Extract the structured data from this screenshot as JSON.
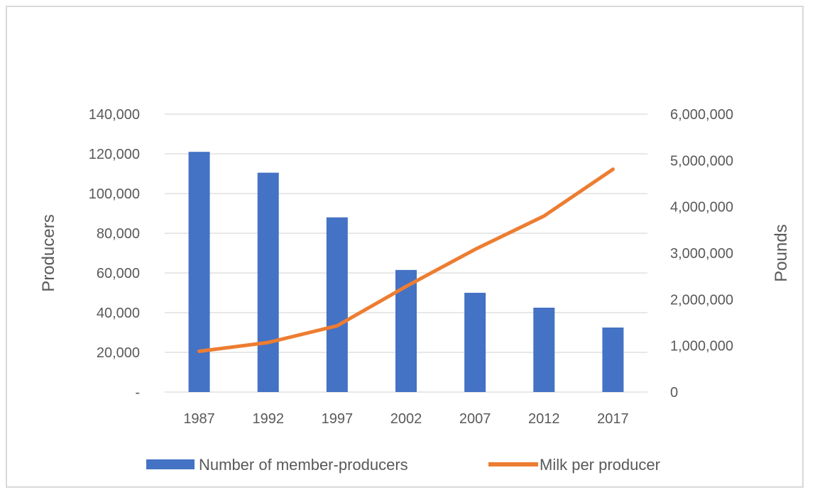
{
  "chart_data": {
    "type": "bar",
    "categories": [
      "1987",
      "1992",
      "1997",
      "2002",
      "2007",
      "2012",
      "2017"
    ],
    "series": [
      {
        "name": "Number of member-producers",
        "type": "bar",
        "axis": "left",
        "color": "#4472c4",
        "values": [
          121000,
          110500,
          88000,
          61500,
          50000,
          42500,
          32500
        ]
      },
      {
        "name": "Milk per producer",
        "type": "line",
        "axis": "right",
        "color": "#ed7d31",
        "values": [
          880000,
          1070000,
          1430000,
          2280000,
          3080000,
          3800000,
          4810000
        ]
      }
    ],
    "ylabel": "Producers",
    "y2label": "Pounds",
    "ylim": [
      0,
      140000
    ],
    "y2lim": [
      0,
      6000000
    ],
    "yticks": [
      "-",
      "20,000",
      "40,000",
      "60,000",
      "80,000",
      "100,000",
      "120,000",
      "140,000"
    ],
    "y2ticks": [
      "0",
      "1,000,000",
      "2,000,000",
      "3,000,000",
      "4,000,000",
      "5,000,000",
      "6,000,000"
    ],
    "grid": true,
    "legend_position": "bottom"
  }
}
